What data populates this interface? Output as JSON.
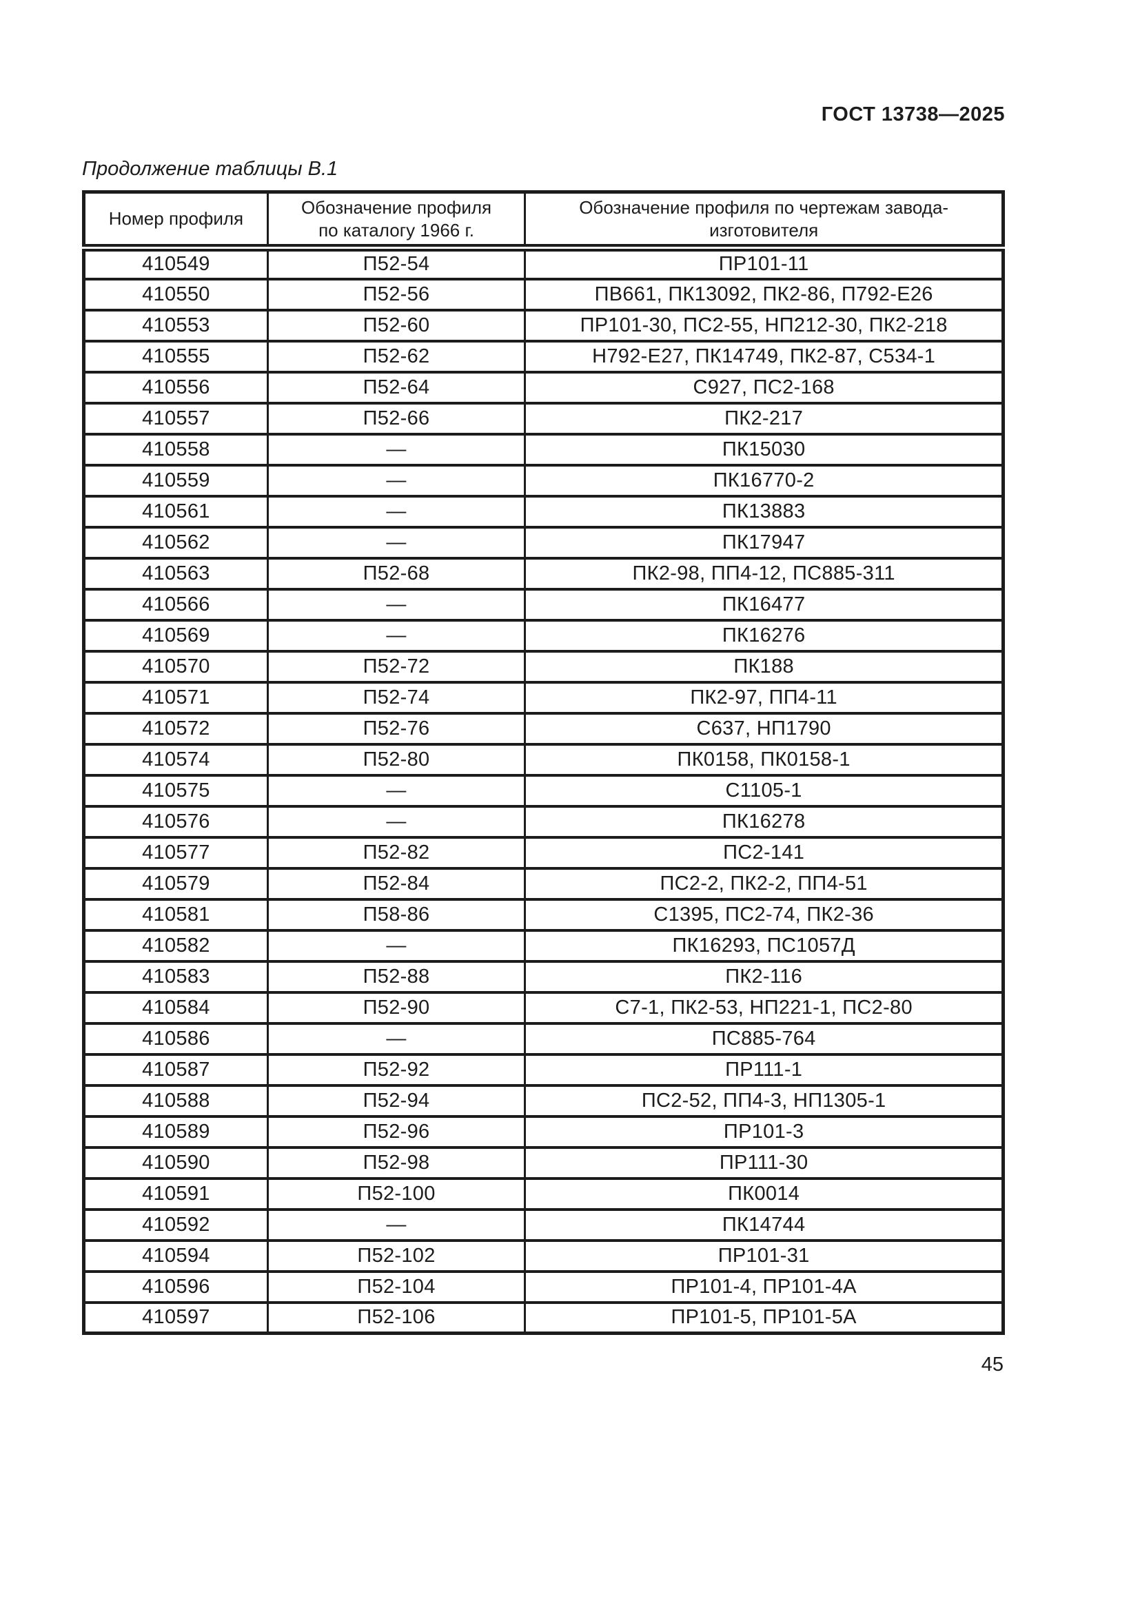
{
  "page": {
    "doc_code": "ГОСТ 13738—2025",
    "table_caption": "Продолжение таблицы В.1",
    "page_number": "45"
  },
  "table": {
    "columns": [
      "Номер профиля",
      "Обозначение профиля\nпо каталогу 1966 г.",
      "Обозначение профиля по чертежам завода-изготовителя"
    ],
    "empty_marker": "—",
    "rows": [
      [
        "410549",
        "П52-54",
        "ПР101-11"
      ],
      [
        "410550",
        "П52-56",
        "ПВ661, ПК13092, ПК2-86, П792-Е26"
      ],
      [
        "410553",
        "П52-60",
        "ПР101-30, ПС2-55, НП212-30, ПК2-218"
      ],
      [
        "410555",
        "П52-62",
        "Н792-Е27, ПК14749, ПК2-87, С534-1"
      ],
      [
        "410556",
        "П52-64",
        "С927, ПС2-168"
      ],
      [
        "410557",
        "П52-66",
        "ПК2-217"
      ],
      [
        "410558",
        "—",
        "ПК15030"
      ],
      [
        "410559",
        "—",
        "ПК16770-2"
      ],
      [
        "410561",
        "—",
        "ПК13883"
      ],
      [
        "410562",
        "—",
        "ПК17947"
      ],
      [
        "410563",
        "П52-68",
        "ПК2-98, ПП4-12, ПС885-311"
      ],
      [
        "410566",
        "—",
        "ПК16477"
      ],
      [
        "410569",
        "—",
        "ПК16276"
      ],
      [
        "410570",
        "П52-72",
        "ПК188"
      ],
      [
        "410571",
        "П52-74",
        "ПК2-97, ПП4-11"
      ],
      [
        "410572",
        "П52-76",
        "С637, НП1790"
      ],
      [
        "410574",
        "П52-80",
        "ПК0158, ПК0158-1"
      ],
      [
        "410575",
        "—",
        "С1105-1"
      ],
      [
        "410576",
        "—",
        "ПК16278"
      ],
      [
        "410577",
        "П52-82",
        "ПС2-141"
      ],
      [
        "410579",
        "П52-84",
        "ПС2-2, ПК2-2, ПП4-51"
      ],
      [
        "410581",
        "П58-86",
        "С1395, ПС2-74, ПК2-36"
      ],
      [
        "410582",
        "—",
        "ПК16293, ПС1057Д"
      ],
      [
        "410583",
        "П52-88",
        "ПК2-116"
      ],
      [
        "410584",
        "П52-90",
        "С7-1, ПК2-53, НП221-1, ПС2-80"
      ],
      [
        "410586",
        "—",
        "ПС885-764"
      ],
      [
        "410587",
        "П52-92",
        "ПР111-1"
      ],
      [
        "410588",
        "П52-94",
        "ПС2-52, ПП4-3, НП1305-1"
      ],
      [
        "410589",
        "П52-96",
        "ПР101-3"
      ],
      [
        "410590",
        "П52-98",
        "ПР111-30"
      ],
      [
        "410591",
        "П52-100",
        "ПК0014"
      ],
      [
        "410592",
        "—",
        "ПК14744"
      ],
      [
        "410594",
        "П52-102",
        "ПР101-31"
      ],
      [
        "410596",
        "П52-104",
        "ПР101-4, ПР101-4А"
      ],
      [
        "410597",
        "П52-106",
        "ПР101-5, ПР101-5А"
      ]
    ]
  }
}
